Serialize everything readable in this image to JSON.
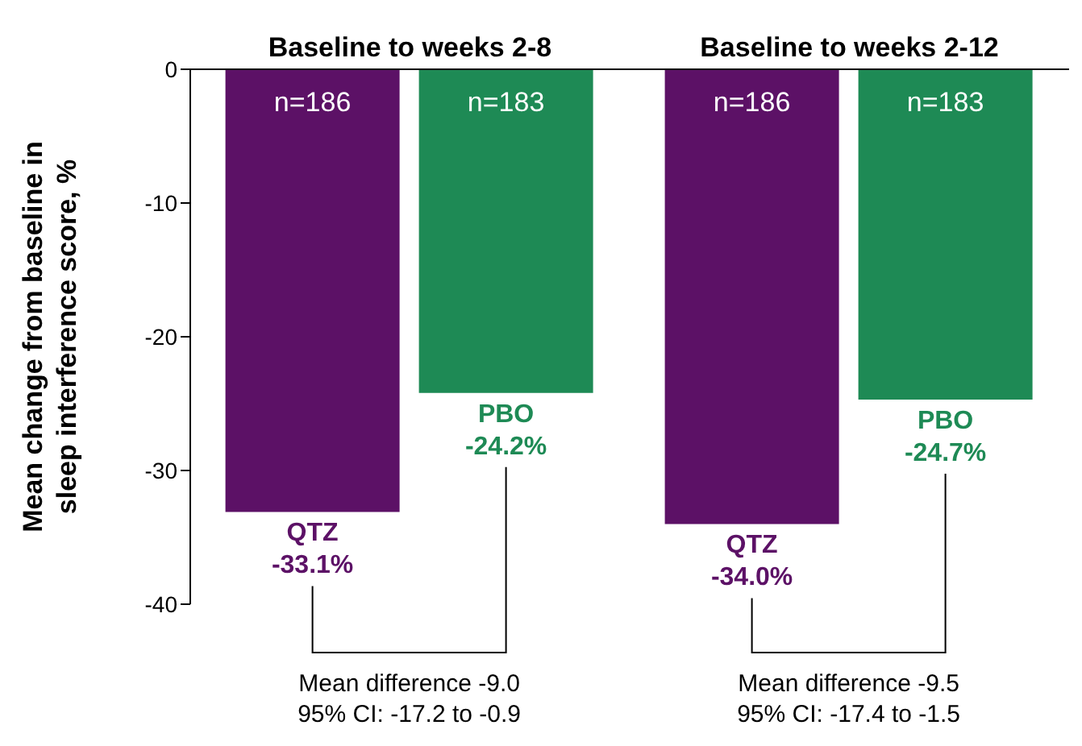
{
  "chart_data": {
    "type": "bar",
    "ylabel": "Mean change from baseline in\nsleep interference score, %",
    "categories": [
      "Baseline to weeks 2-8",
      "Baseline to weeks 2-12"
    ],
    "series": [
      {
        "name": "QTZ",
        "color": "#5c1166",
        "values": [
          -33.1,
          -34.0
        ],
        "value_labels": [
          "-33.1%",
          "-34.0%"
        ]
      },
      {
        "name": "PBO",
        "color": "#1e8a55",
        "values": [
          -24.2,
          -24.7
        ],
        "value_labels": [
          "-24.2%",
          "-24.7%"
        ]
      }
    ],
    "ylim": [
      -40,
      0
    ],
    "yticks": [
      0,
      -10,
      -20,
      -30,
      -40
    ],
    "grid": false,
    "legend": false,
    "annotations": [
      "n=186",
      "n=183",
      "n=186",
      "n=183",
      "Mean difference -9.0\n95% CI: -17.2 to -0.9",
      "Mean difference -9.5\n95% CI: -17.4 to -1.5"
    ]
  }
}
